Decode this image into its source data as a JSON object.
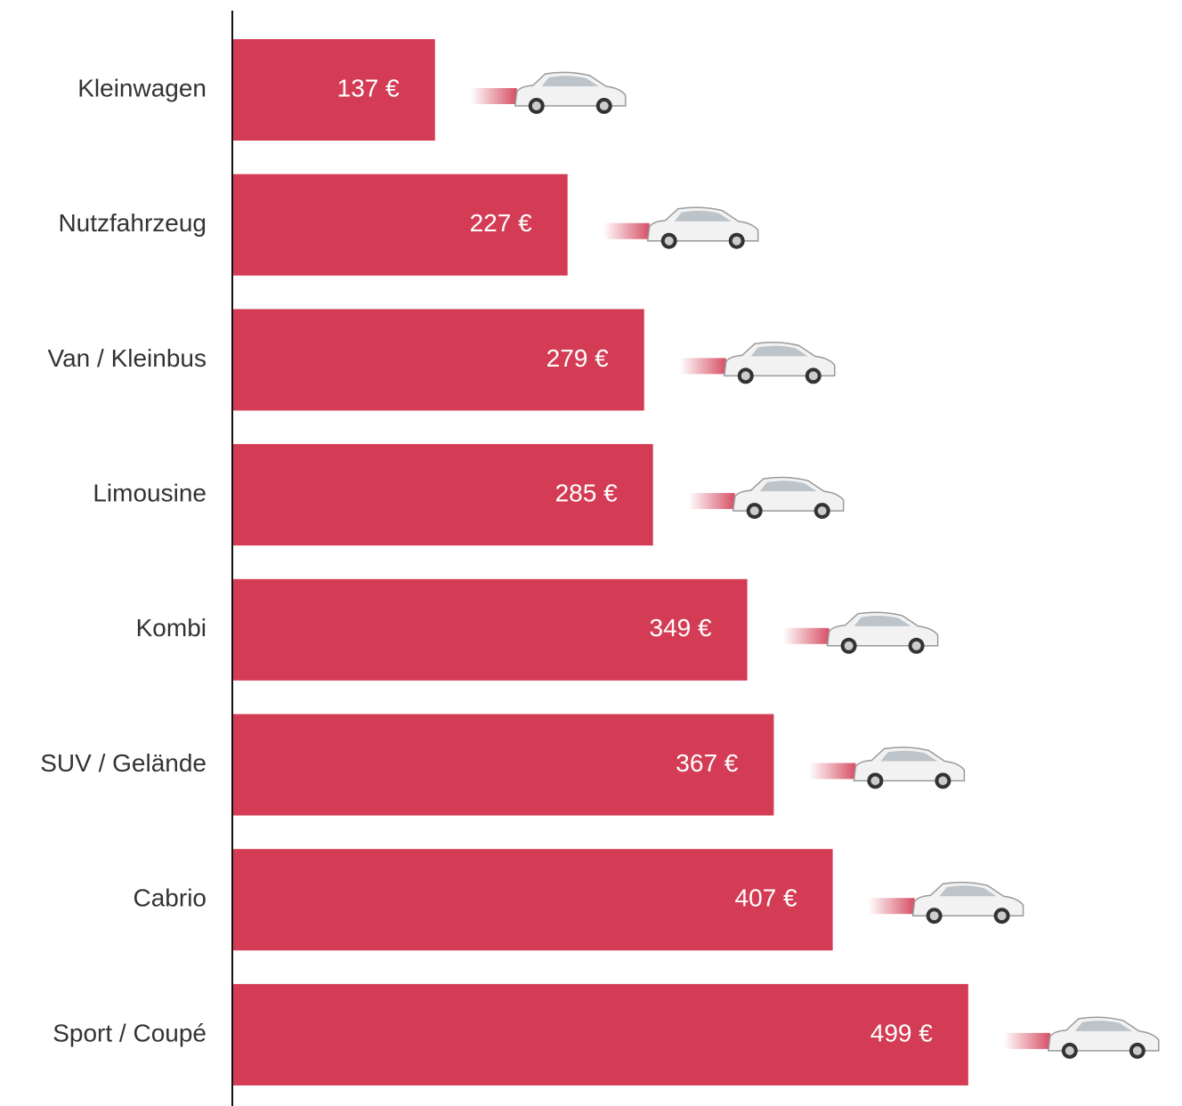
{
  "chart_data": {
    "type": "hbar",
    "categories": [
      "Kleinwagen",
      "Nutzfahrzeug",
      "Van / Kleinbus",
      "Limousine",
      "Kombi",
      "SUV / Gelände",
      "Cabrio",
      "Sport / Coupé"
    ],
    "values": [
      137,
      227,
      279,
      285,
      349,
      367,
      407,
      499
    ],
    "value_labels": [
      "137 €",
      "227 €",
      "279 €",
      "285 €",
      "349 €",
      "367 €",
      "407 €",
      "499 €"
    ],
    "color": "#d33c54"
  }
}
